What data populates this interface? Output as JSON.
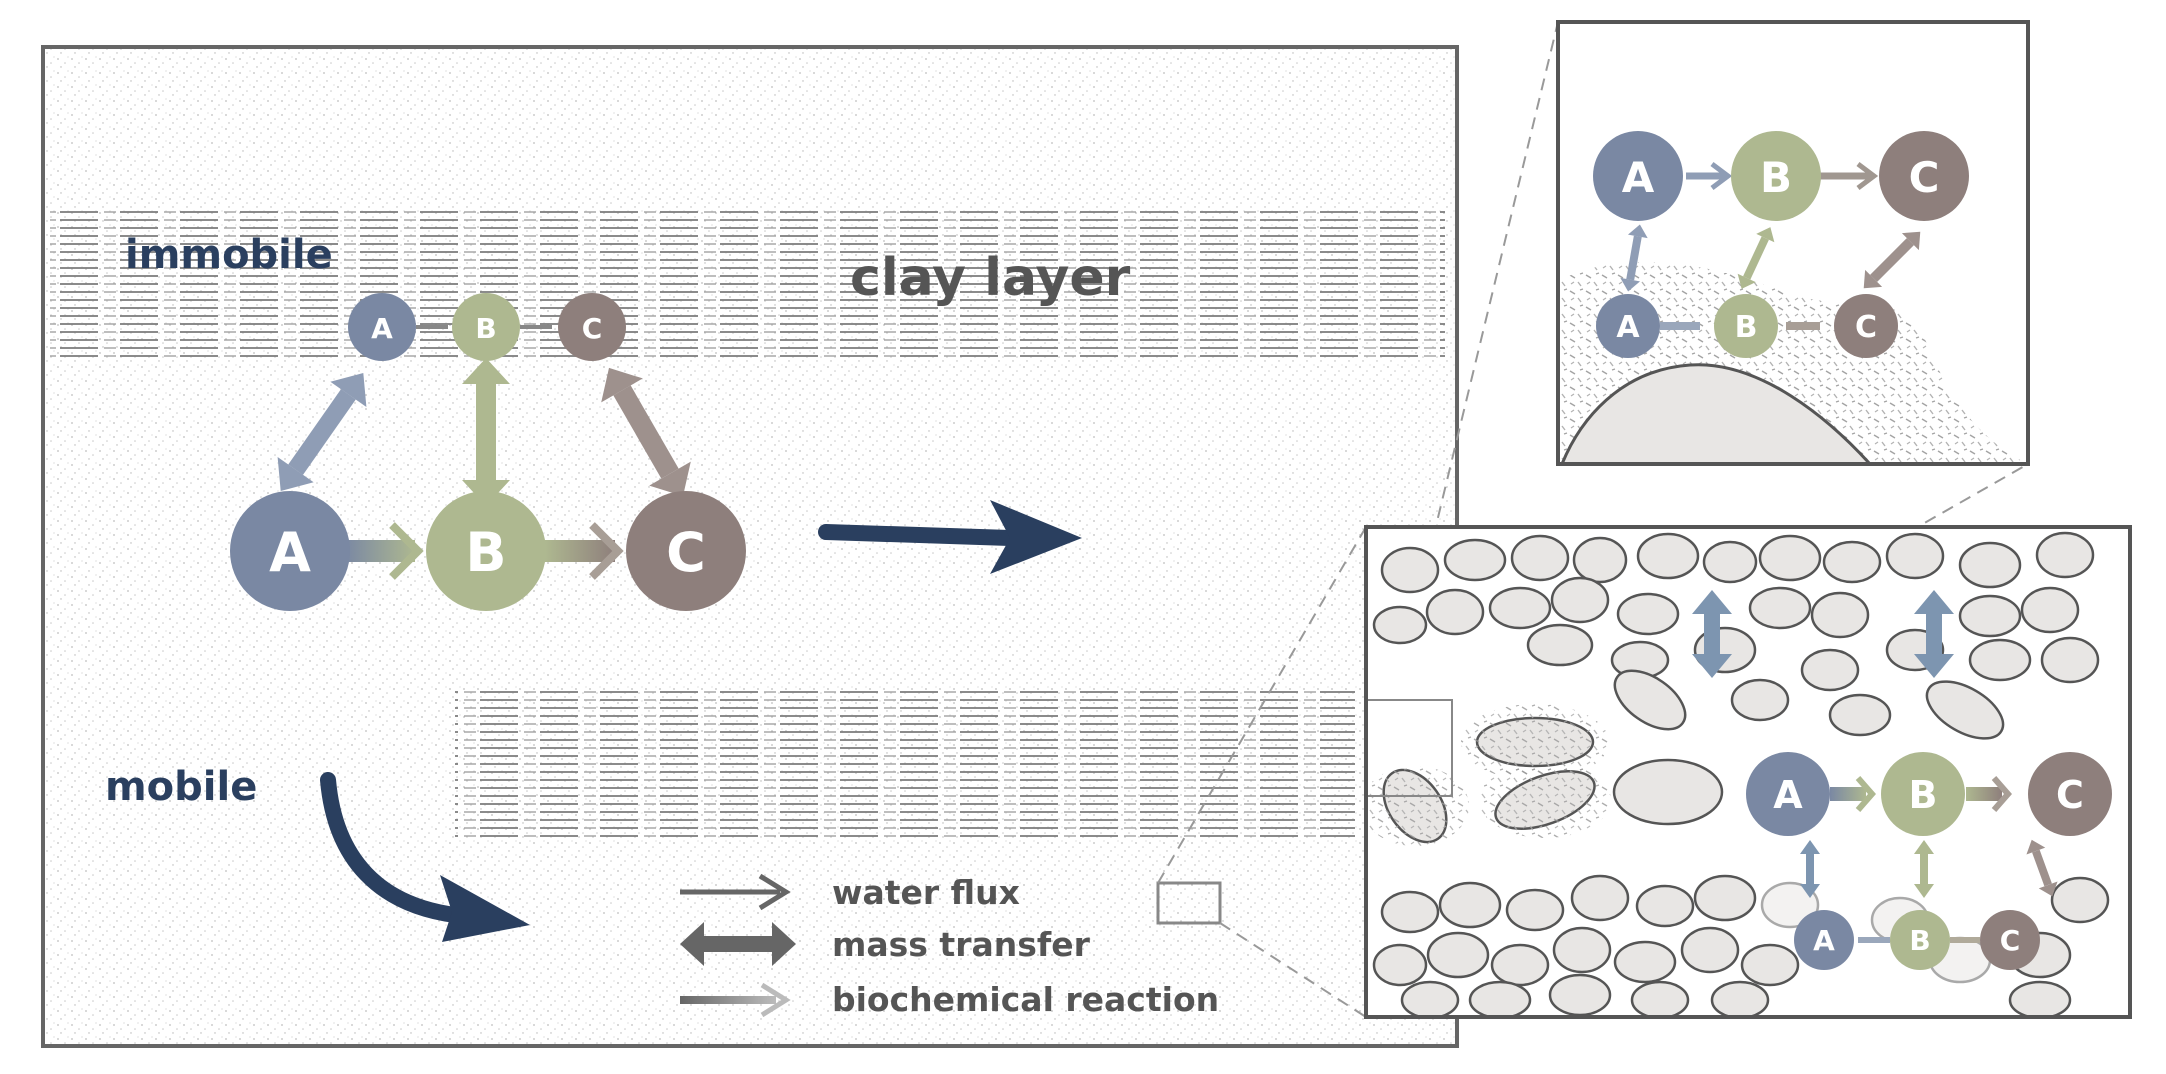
{
  "diagram": {
    "immobile_label": "immobile",
    "mobile_label": "mobile",
    "clay_label": "clay layer",
    "node_labels": {
      "a": "A",
      "b": "B",
      "c": "C"
    },
    "legend": {
      "water_flux": "water flux",
      "mass_transfer": "mass transfer",
      "biochemical_reaction": "biochemical reaction"
    },
    "colors": {
      "a": "#7a88a3",
      "b": "#aeb890",
      "c": "#8e7f7c",
      "flow_arrow": "#2a3f5f",
      "label_dark": "#2a3f5f",
      "text_gray": "#555555",
      "frame": "#666666",
      "grain_fill": "#e8e6e4",
      "grain_stroke": "#555555"
    }
  }
}
